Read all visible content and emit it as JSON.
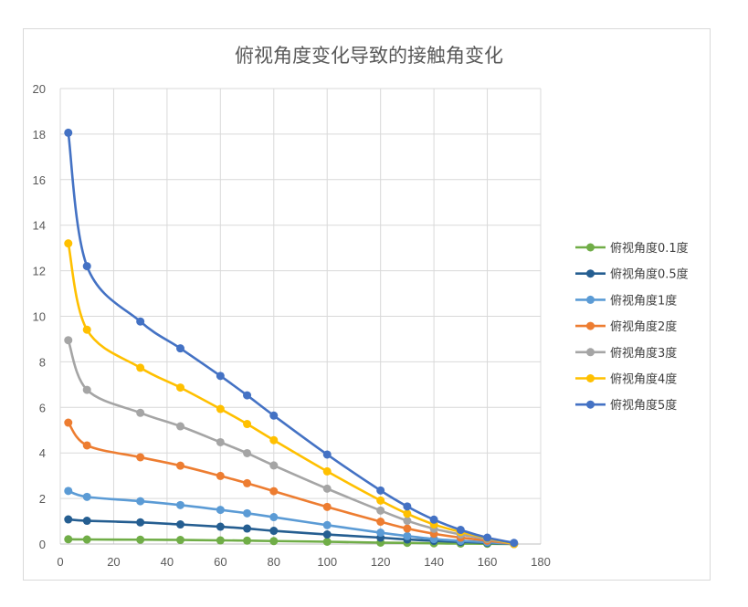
{
  "chart_data": {
    "type": "line",
    "title": "俯视角度变化导致的接触角变化",
    "xlabel": "",
    "ylabel": "",
    "xlim": [
      0,
      180
    ],
    "ylim": [
      0,
      20
    ],
    "x_ticks": [
      0,
      20,
      40,
      60,
      80,
      100,
      120,
      140,
      160,
      180
    ],
    "y_ticks": [
      0,
      2,
      4,
      6,
      8,
      10,
      12,
      14,
      16,
      18,
      20
    ],
    "grid": true,
    "legend_position": "right",
    "x": [
      3,
      10,
      30,
      45,
      60,
      70,
      80,
      100,
      120,
      130,
      140,
      150,
      160,
      170
    ],
    "series": [
      {
        "name": "俯视角度0.1度",
        "color": "#70AD47",
        "values": [
          0.21,
          0.2,
          0.19,
          0.18,
          0.16,
          0.15,
          0.13,
          0.1,
          0.06,
          0.05,
          0.03,
          0.02,
          0.01,
          0.0
        ]
      },
      {
        "name": "俯视角度0.5度",
        "color": "#255E91",
        "values": [
          1.08,
          1.02,
          0.95,
          0.86,
          0.76,
          0.68,
          0.58,
          0.42,
          0.28,
          0.2,
          0.14,
          0.09,
          0.05,
          0.0
        ]
      },
      {
        "name": "俯视角度1度",
        "color": "#5B9BD5",
        "values": [
          2.33,
          2.07,
          1.88,
          1.71,
          1.5,
          1.35,
          1.18,
          0.83,
          0.5,
          0.35,
          0.22,
          0.14,
          0.08,
          0.0
        ]
      },
      {
        "name": "俯视角度2度",
        "color": "#ED7D31",
        "values": [
          5.33,
          4.33,
          3.81,
          3.44,
          2.99,
          2.67,
          2.32,
          1.63,
          0.98,
          0.68,
          0.45,
          0.28,
          0.15,
          0.0
        ]
      },
      {
        "name": "俯视角度3度",
        "color": "#A5A5A5",
        "values": [
          8.95,
          6.77,
          5.76,
          5.17,
          4.47,
          3.99,
          3.45,
          2.43,
          1.47,
          1.02,
          0.67,
          0.42,
          0.22,
          0.0
        ]
      },
      {
        "name": "俯视角度4度",
        "color": "#FFC000",
        "values": [
          13.2,
          9.41,
          7.74,
          6.87,
          5.93,
          5.27,
          4.56,
          3.19,
          1.91,
          1.33,
          0.86,
          0.53,
          0.26,
          0.0
        ]
      },
      {
        "name": "俯视角度5度",
        "color": "#4472C4",
        "values": [
          18.06,
          12.2,
          9.77,
          8.59,
          7.38,
          6.53,
          5.64,
          3.93,
          2.35,
          1.65,
          1.07,
          0.62,
          0.28,
          0.05
        ]
      }
    ]
  }
}
